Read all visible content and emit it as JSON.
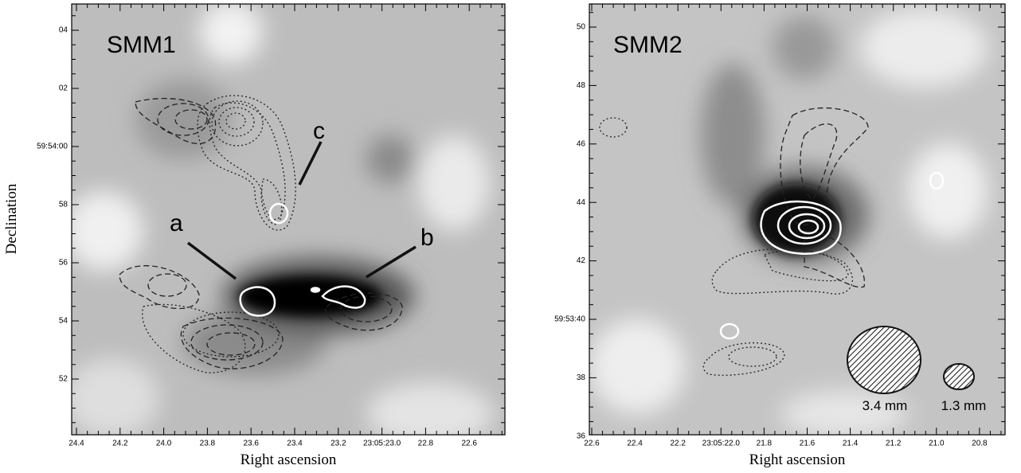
{
  "panels": [
    {
      "label": "SMM1",
      "x_label": "Right ascension",
      "y_label": "Declination",
      "x_ticks": [
        "24.4",
        "24.2",
        "24.0",
        "23.8",
        "23.6",
        "23.4",
        "23.2",
        "23:05:23.0",
        "22.8",
        "22.6"
      ],
      "y_ticks": [
        "04",
        "02",
        "59:54:00",
        "58",
        "56",
        "54",
        "52"
      ],
      "annotations": [
        "a",
        "b",
        "c"
      ]
    },
    {
      "label": "SMM2",
      "x_label": "Right ascension",
      "x_ticks": [
        "22.6",
        "22.4",
        "22.2",
        "23:05:22.0",
        "21.8",
        "21.6",
        "21.4",
        "21.2",
        "21.0",
        "20.8"
      ],
      "y_ticks": [
        "50",
        "48",
        "46",
        "44",
        "42",
        "59:53:40",
        "38",
        "36"
      ],
      "beams": [
        "3.4 mm",
        "1.3 mm"
      ]
    }
  ]
}
